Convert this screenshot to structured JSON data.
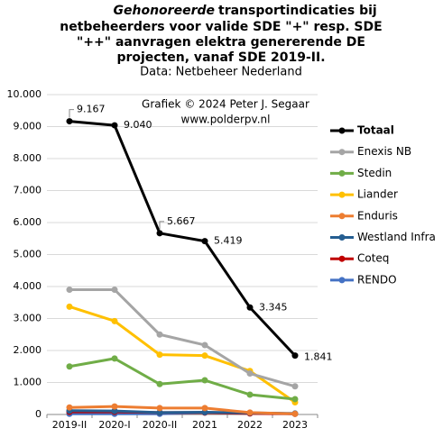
{
  "chart_data": {
    "type": "line",
    "title_emphasis": "Gehonoreerde",
    "title_lines": [
      "transportindicaties bij",
      "netbeheerders voor valide SDE \"+\" resp. SDE",
      "\"++\" aanvragen elektra genererende DE",
      "projecten, vanaf SDE 2019-II."
    ],
    "subtitle": "Data: Netbeheer Nederland",
    "annotations": [
      "Grafiek  © 2024  Peter J. Segaar",
      "www.polderpv.nl"
    ],
    "categories": [
      "2019-II",
      "2020-I",
      "2020-II",
      "2021",
      "2022",
      "2023"
    ],
    "series": [
      {
        "name": "Totaal",
        "color": "#000000",
        "width": 3,
        "values": [
          9167,
          9040,
          5667,
          5419,
          3345,
          1841
        ],
        "value_labels": [
          "9.167",
          "9.040",
          "5.667",
          "5.419",
          "3.345",
          "1.841"
        ]
      },
      {
        "name": "Enexis NB",
        "color": "#a5a5a5",
        "width": 3,
        "values": [
          3900,
          3900,
          2500,
          2170,
          1280,
          880
        ]
      },
      {
        "name": "Stedin",
        "color": "#70ad47",
        "width": 3,
        "values": [
          1500,
          1750,
          950,
          1070,
          620,
          480
        ]
      },
      {
        "name": "Liander",
        "color": "#ffc000",
        "width": 3,
        "values": [
          3370,
          2920,
          1870,
          1840,
          1360,
          380
        ]
      },
      {
        "name": "Enduris",
        "color": "#ed7d31",
        "width": 3,
        "values": [
          220,
          250,
          200,
          200,
          60,
          20
        ]
      },
      {
        "name": "Westland Infra",
        "color": "#255e91",
        "width": 3,
        "values": [
          120,
          110,
          60,
          70,
          50,
          30
        ]
      },
      {
        "name": "Coteq",
        "color": "#c00000",
        "width": 3,
        "values": [
          80,
          80,
          60,
          60,
          30,
          20
        ]
      },
      {
        "name": "RENDO",
        "color": "#4472c4",
        "width": 3,
        "values": [
          20,
          20,
          20,
          60,
          50,
          20
        ]
      }
    ],
    "ylim": [
      0,
      10000
    ],
    "yticks": [
      0,
      {
        "value": 1000,
        "label": "1.000"
      },
      {
        "value": 2000,
        "label": "2.000"
      },
      {
        "value": 3000,
        "label": "3.000"
      },
      {
        "value": 4000,
        "label": "4.000"
      },
      {
        "value": 5000,
        "label": "5.000"
      },
      {
        "value": 6000,
        "label": "6.000"
      },
      {
        "value": 7000,
        "label": "7.000"
      },
      {
        "value": 8000,
        "label": "8.000"
      },
      {
        "value": 9000,
        "label": "9.000"
      },
      {
        "value": 10000,
        "label": "10.000"
      }
    ],
    "grid": true
  }
}
